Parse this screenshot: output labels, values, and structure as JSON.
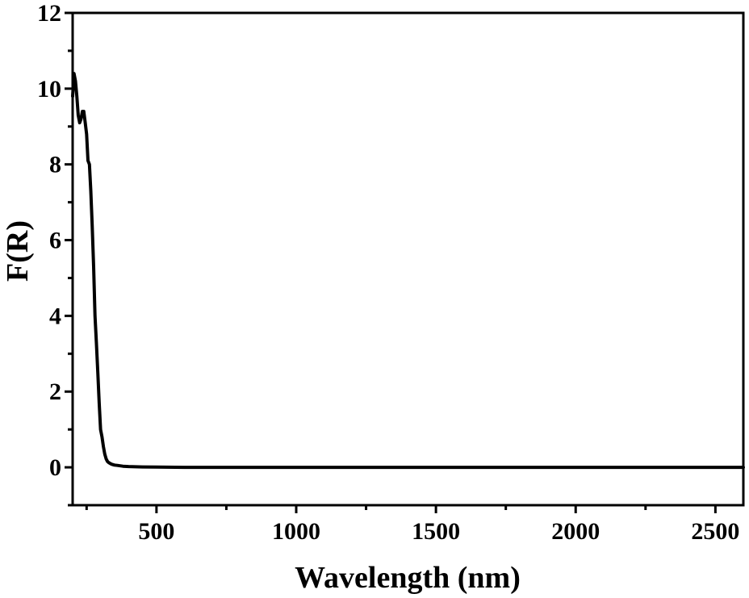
{
  "chart_data": {
    "type": "line",
    "title": "",
    "xlabel": "Wavelength (nm)",
    "ylabel": "F(R)",
    "xlim": [
      200,
      2600
    ],
    "ylim": [
      -1,
      12
    ],
    "x_major_ticks": [
      500,
      1000,
      1500,
      2000,
      2500
    ],
    "x_minor_ticks": [
      250,
      750,
      1250,
      1750,
      2250
    ],
    "y_major_ticks": [
      0,
      2,
      4,
      6,
      8,
      10,
      12
    ],
    "y_minor_ticks": [
      -1,
      1,
      3,
      5,
      7,
      9,
      11
    ],
    "grid": false,
    "legend": "none",
    "line_color": "#000000",
    "series": [
      {
        "x": [
          200,
          205,
          210,
          215,
          220,
          225,
          230,
          235,
          240,
          245,
          250,
          255,
          260,
          265,
          270,
          275,
          280,
          285,
          290,
          295,
          300,
          305,
          310,
          315,
          320,
          325,
          330,
          335,
          340,
          350,
          360,
          380,
          400,
          450,
          500,
          600,
          800,
          1000,
          1500,
          2000,
          2500,
          2600
        ],
        "y": [
          9.8,
          10.4,
          10.2,
          9.8,
          9.3,
          9.1,
          9.2,
          9.4,
          9.4,
          9.1,
          8.8,
          8.1,
          8.0,
          7.3,
          6.4,
          5.3,
          4.0,
          3.3,
          2.5,
          1.7,
          1.0,
          0.8,
          0.55,
          0.35,
          0.22,
          0.15,
          0.12,
          0.1,
          0.08,
          0.06,
          0.05,
          0.03,
          0.02,
          0.01,
          0.005,
          0.0,
          0.0,
          0.0,
          0.0,
          0.0,
          0.0,
          0.0
        ]
      }
    ]
  }
}
